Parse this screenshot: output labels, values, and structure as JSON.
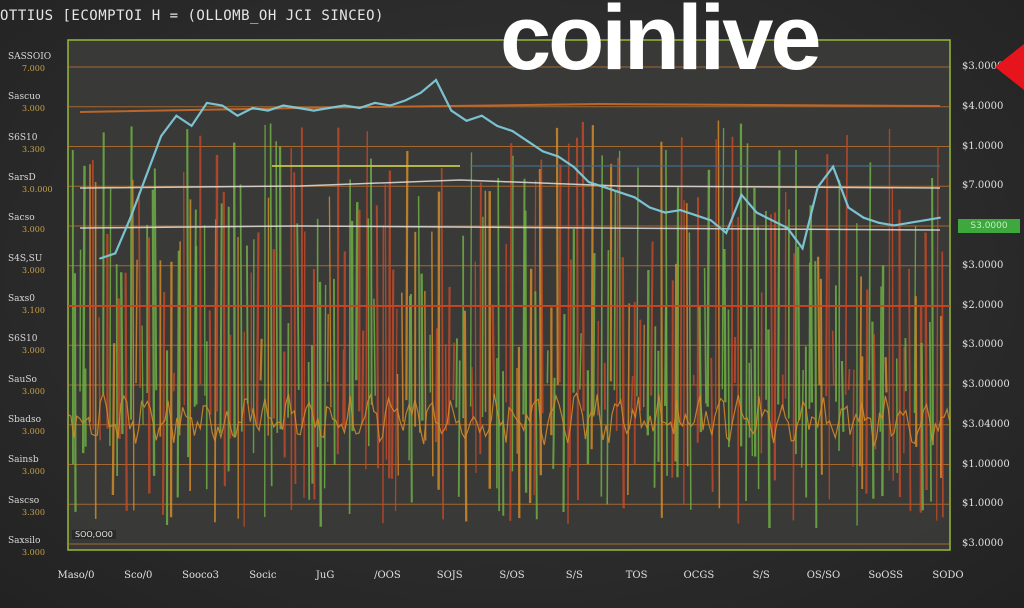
{
  "title": "OTTIUS [ECOMPTOI H = (OLLOMB_OH JCI SINCEO)",
  "logo": {
    "text": "coinlive",
    "accent": "#e6151d"
  },
  "left_axis_labels": [
    {
      "main": "SASSOIO",
      "sub": "7.000"
    },
    {
      "main": "Sascuo",
      "sub": "3.000"
    },
    {
      "main": "S6S10",
      "sub": "3.300"
    },
    {
      "main": "SarsD",
      "sub": "3.0.000"
    },
    {
      "main": "Sacso",
      "sub": "3.000"
    },
    {
      "main": "S4S,SU",
      "sub": "3.000"
    },
    {
      "main": "Saxs0",
      "sub": "3.100"
    },
    {
      "main": "S6S10",
      "sub": "3.000"
    },
    {
      "main": "SauSo",
      "sub": "3.000"
    },
    {
      "main": "Sbadso",
      "sub": "3.000"
    },
    {
      "main": "Sainsb",
      "sub": "3.000"
    },
    {
      "main": "Sascso",
      "sub": "3.300"
    },
    {
      "main": "Saxsilo",
      "sub": "3.000"
    }
  ],
  "right_axis_labels": [
    "$3.0000",
    "$4.0000",
    "$1.0000",
    "$7.0000",
    "$3.0000",
    "$3.0000",
    "$2.0000",
    "$3.0000",
    "$3.00000",
    "$3.04000",
    "$1.00000",
    "$1.0000",
    "$3.0000"
  ],
  "green_tag": "S3.0000",
  "footer_badge": "SOO,OO0",
  "x_tick_labels": [
    "Maso/0",
    "Sco/0",
    "Sooco3",
    "Socic",
    "JuG",
    "/OOS",
    "SOJS",
    "S/OS",
    "S/S",
    "TOS",
    "OCGS",
    "S/S",
    "OS/SO",
    "SoOSS",
    "SODO"
  ],
  "colors": {
    "accent_line": "#7ec9d8",
    "green": "#6fae45",
    "red": "#c0492a",
    "orange": "#d08a2a",
    "gridline": "#c8782e",
    "ref_line": "#e0e0e0",
    "frame_green": "#9cc23a"
  },
  "chart_data": {
    "type": "line",
    "title": "OTTIUS [ECOMPTOI H = (OLLOMB_OH JCI SINCEO)",
    "xlabel": "",
    "ylabel": "",
    "ylim": [
      0,
      100
    ],
    "grid": true,
    "series": [
      {
        "values": [
          30,
          32,
          46,
          62,
          78,
          86,
          82,
          91,
          90,
          86,
          89,
          88,
          90,
          89,
          88,
          89,
          90,
          89,
          91,
          90,
          92,
          95,
          100,
          88,
          84,
          86,
          82,
          80,
          76,
          72,
          70,
          66,
          60,
          58,
          56,
          54,
          50,
          48,
          49,
          47,
          45,
          40,
          55,
          48,
          45,
          42,
          34,
          58,
          66,
          50,
          46,
          44,
          43,
          44,
          45,
          46
        ]
      }
    ]
  }
}
